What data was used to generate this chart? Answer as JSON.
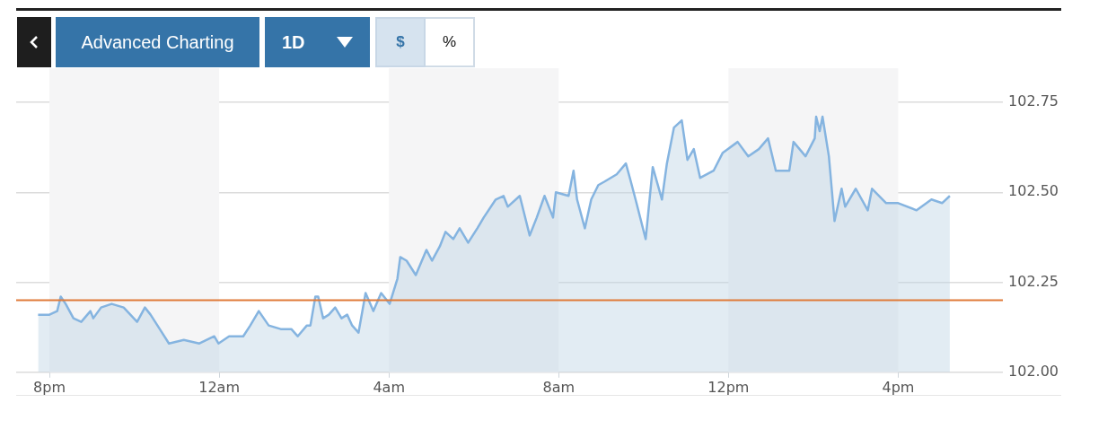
{
  "chart_data": {
    "type": "area",
    "x": [
      "--01-01T19:44",
      "--01-01T20:00",
      "--01-01T20:11",
      "--01-01T20:16",
      "--01-01T20:23",
      "--01-01T20:34",
      "--01-01T20:45",
      "--01-01T20:58",
      "--01-01T21:02",
      "--01-01T21:13",
      "--01-01T21:28",
      "--01-01T21:45",
      "--01-01T22:04",
      "--01-01T22:15",
      "--01-01T22:23",
      "--01-01T22:36",
      "--01-01T22:49",
      "--01-01T23:10",
      "--01-01T23:32",
      "--01-01T23:53",
      "--01-01T23:59",
      "--01-02T00:14",
      "--01-02T00:34",
      "--01-02T00:44",
      "--01-02T00:56",
      "--01-02T01:10",
      "--01-02T01:27",
      "--01-02T01:42",
      "--01-02T01:51",
      "--01-02T02:04",
      "--01-02T02:09",
      "--01-02T02:16",
      "--01-02T02:20",
      "--01-02T02:27",
      "--01-02T02:35",
      "--01-02T02:44",
      "--01-02T02:53",
      "--01-02T03:01",
      "--01-02T03:08",
      "--01-02T03:17",
      "--01-02T03:27",
      "--01-02T03:38",
      "--01-02T03:49",
      "--01-02T04:01",
      "--01-02T04:12",
      "--01-02T04:16",
      "--01-02T04:25",
      "--01-02T04:38",
      "--01-02T04:53",
      "--01-02T05:01",
      "--01-02T05:12",
      "--01-02T05:20",
      "--01-02T05:31",
      "--01-02T05:40",
      "--01-02T05:52",
      "--01-02T06:05",
      "--01-02T06:14",
      "--01-02T06:31",
      "--01-02T06:42",
      "--01-02T06:48",
      "--01-02T07:05",
      "--01-02T07:19",
      "--01-02T07:29",
      "--01-02T07:40",
      "--01-02T07:52",
      "--01-02T07:56",
      "--01-02T08:14",
      "--01-02T08:21",
      "--01-02T08:26",
      "--01-02T08:37",
      "--01-02T08:46",
      "--01-02T08:56",
      "--01-02T09:05",
      "--01-02T09:22",
      "--01-02T09:35",
      "--01-02T09:42",
      "--01-02T09:50",
      "--01-02T10:03",
      "--01-02T10:13",
      "--01-02T10:26",
      "--01-02T10:33",
      "--01-02T10:43",
      "--01-02T10:54",
      "--01-02T11:02",
      "--01-02T11:11",
      "--01-02T11:20",
      "--01-02T11:39",
      "--01-02T11:52",
      "--01-02T12:13",
      "--01-02T12:28",
      "--01-02T12:43",
      "--01-02T12:56",
      "--01-02T13:07",
      "--01-02T13:26",
      "--01-02T13:32",
      "--01-02T13:49",
      "--01-02T14:02",
      "--01-02T14:04",
      "--01-02T14:09",
      "--01-02T14:13",
      "--01-02T14:22",
      "--01-02T14:30",
      "--01-02T14:40",
      "--01-02T14:45",
      "--01-02T15:00",
      "--01-02T15:17",
      "--01-02T15:23",
      "--01-02T15:43",
      "--01-02T16:00",
      "--01-02T16:26",
      "--01-02T16:47",
      "--01-02T17:02",
      "--01-02T17:13"
    ],
    "series": [
      {
        "color": "#85b4e0",
        "values": [
          102.16,
          102.16,
          102.17,
          102.21,
          102.19,
          102.15,
          102.14,
          102.17,
          102.15,
          102.18,
          102.19,
          102.18,
          102.14,
          102.18,
          102.16,
          102.12,
          102.08,
          102.09,
          102.08,
          102.1,
          102.08,
          102.1,
          102.1,
          102.13,
          102.17,
          102.13,
          102.12,
          102.12,
          102.1,
          102.13,
          102.13,
          102.21,
          102.21,
          102.15,
          102.16,
          102.18,
          102.15,
          102.16,
          102.13,
          102.11,
          102.22,
          102.17,
          102.22,
          102.19,
          102.26,
          102.32,
          102.31,
          102.27,
          102.34,
          102.31,
          102.35,
          102.39,
          102.37,
          102.4,
          102.36,
          102.4,
          102.43,
          102.48,
          102.49,
          102.46,
          102.49,
          102.38,
          102.43,
          102.49,
          102.43,
          102.5,
          102.49,
          102.56,
          102.48,
          102.4,
          102.48,
          102.52,
          102.53,
          102.55,
          102.58,
          102.53,
          102.47,
          102.37,
          102.57,
          102.48,
          102.58,
          102.68,
          102.7,
          102.59,
          102.62,
          102.54,
          102.56,
          102.61,
          102.64,
          102.6,
          102.62,
          102.65,
          102.56,
          102.56,
          102.64,
          102.6,
          102.65,
          102.71,
          102.67,
          102.71,
          102.6,
          102.42,
          102.51,
          102.46,
          102.51,
          102.45,
          102.51,
          102.47,
          102.47,
          102.45,
          102.48,
          102.47,
          102.49
        ]
      }
    ],
    "xlim": [
      "--01-01T19:13",
      "--01-02T18:28"
    ],
    "xticks": [
      {
        "value": "--01-01T20:00",
        "label": "8pm"
      },
      {
        "value": "--01-02T00:00",
        "label": "12am"
      },
      {
        "value": "--01-02T04:00",
        "label": "4am"
      },
      {
        "value": "--01-02T08:00",
        "label": "8am"
      },
      {
        "value": "--01-02T12:00",
        "label": "12pm"
      },
      {
        "value": "--01-02T16:00",
        "label": "4pm"
      }
    ],
    "ylim": [
      102.0,
      102.75
    ],
    "yticks": [
      {
        "value": 102.0,
        "label": "102.00"
      },
      {
        "value": 102.25,
        "label": "102.25"
      },
      {
        "value": 102.5,
        "label": "102.50"
      },
      {
        "value": 102.75,
        "label": "102.75"
      }
    ],
    "grid": "y",
    "legend": false,
    "ref_lines": [
      {
        "axis": "y",
        "value": 102.2,
        "color": "#e07b39"
      }
    ],
    "bands": [
      {
        "axis": "x",
        "from": "--01-01T20:00",
        "to": "--01-02T00:00",
        "color": "#f5f5f6"
      },
      {
        "axis": "x",
        "from": "--01-02T04:00",
        "to": "--01-02T08:00",
        "color": "#f5f5f6"
      },
      {
        "axis": "x",
        "from": "--01-02T12:00",
        "to": "--01-02T16:00",
        "color": "#f5f5f6"
      }
    ],
    "annotations": [
      "Advanced Charting",
      "1D",
      "$",
      "%"
    ]
  }
}
